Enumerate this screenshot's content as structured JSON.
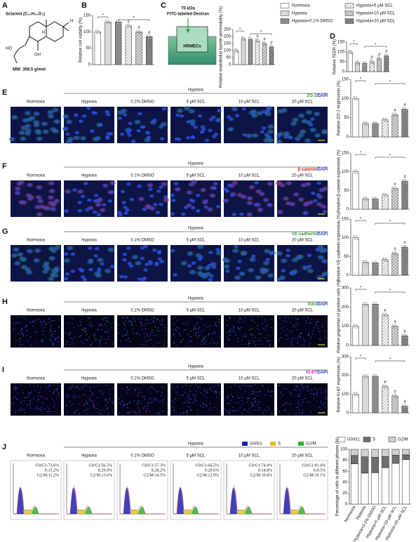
{
  "panel_letters": [
    "A",
    "B",
    "C",
    "D",
    "E",
    "F",
    "G",
    "H",
    "I",
    "J"
  ],
  "structure": {
    "title": "Sclareol (C₂₀H₃₆O₃)",
    "atoms": [
      "H",
      "H",
      "HO",
      "OH"
    ],
    "mw": "MW: 308.5 g/mol"
  },
  "assay": {
    "label1": "70 kDa",
    "label2": "FITC-labeled Dextran",
    "cells": "HRMECs"
  },
  "legend": {
    "names": [
      "Normoxia",
      "Hypoxia",
      "Hypoxia+0.1% DMSO",
      "Hypoxia+5 μM SCL",
      "Hypoxia+10 μM SCL",
      "Hypoxia+20 μM SCL"
    ],
    "colors": [
      "#ffffff",
      "#d9d9d9",
      "#8c8c8c",
      "#ffffff",
      "#d9d9d9",
      "#8c8c8c"
    ],
    "hatched": [
      false,
      false,
      false,
      true,
      true,
      true
    ]
  },
  "chart_data": [
    {
      "type": "bar",
      "ylabel": "Relative cell viability (%)",
      "ylim": [
        0,
        150
      ],
      "yticks": [
        0,
        50,
        100,
        150
      ],
      "values": [
        100,
        130,
        130,
        118,
        100,
        85
      ],
      "brackets": [
        "*",
        "*"
      ],
      "bar_labels": [
        null,
        null,
        null,
        "#",
        "#",
        "#"
      ]
    },
    {
      "type": "bar",
      "ylabel": "Relative endothelial barrier permeability (%)",
      "ylim": [
        0,
        250
      ],
      "yticks": [
        0,
        50,
        100,
        150,
        200,
        250
      ],
      "values": [
        100,
        185,
        180,
        170,
        150,
        125
      ],
      "brackets": [
        "*",
        "*"
      ],
      "bar_labels": [
        null,
        null,
        null,
        "#",
        "#",
        "#"
      ]
    },
    {
      "type": "bar",
      "ylabel": "Relative TEER (%)",
      "ylim": [
        0,
        150
      ],
      "yticks": [
        0,
        50,
        100,
        150
      ],
      "values": [
        100,
        45,
        42,
        50,
        65,
        80
      ],
      "brackets": [
        "*",
        "*"
      ],
      "bar_labels": [
        null,
        null,
        null,
        "#",
        "#",
        "#"
      ]
    },
    {
      "type": "bar",
      "ylabel": "Relative ZO-1 expression (%)",
      "ylim": [
        0,
        150
      ],
      "yticks": [
        0,
        50,
        100,
        150
      ],
      "values": [
        100,
        35,
        35,
        45,
        58,
        72
      ],
      "brackets": [
        "*",
        "*"
      ],
      "bar_labels": [
        null,
        null,
        null,
        null,
        "#",
        "#"
      ]
    },
    {
      "type": "bar",
      "ylabel": "Relative β-catenin expression (%)",
      "ylim": [
        0,
        150
      ],
      "yticks": [
        0,
        50,
        100,
        150
      ],
      "values": [
        100,
        28,
        28,
        38,
        55,
        75
      ],
      "brackets": [
        "*",
        "*"
      ],
      "bar_labels": [
        null,
        null,
        null,
        null,
        "#",
        "#"
      ]
    },
    {
      "type": "bar",
      "ylabel": "Relative VE-cadherin expression (%)",
      "ylim": [
        0,
        150
      ],
      "yticks": [
        0,
        50,
        100,
        150
      ],
      "values": [
        100,
        35,
        33,
        42,
        58,
        75
      ],
      "brackets": [
        "*",
        "*"
      ],
      "bar_labels": [
        null,
        null,
        null,
        null,
        "#",
        "#"
      ]
    },
    {
      "type": "bar",
      "ylabel": "Relative proportion of positive cells (%)",
      "ylim": [
        0,
        300
      ],
      "yticks": [
        0,
        100,
        200,
        300
      ],
      "values": [
        100,
        215,
        215,
        160,
        100,
        50
      ],
      "brackets": [
        "*",
        "*"
      ],
      "bar_labels": [
        null,
        null,
        null,
        "#",
        "#",
        "#"
      ]
    },
    {
      "type": "bar",
      "ylabel": "Relative Ki-67 expression (%)",
      "ylim": [
        0,
        300
      ],
      "yticks": [
        0,
        100,
        200,
        300
      ],
      "values": [
        100,
        195,
        195,
        140,
        90,
        35
      ],
      "brackets": [
        "*",
        "*"
      ],
      "bar_labels": [
        null,
        null,
        null,
        "#",
        "#",
        "#"
      ]
    },
    {
      "type": "stacked_bar",
      "ylabel": "Percentage of cells in different phases (%)",
      "ylim": [
        0,
        100
      ],
      "yticks": [
        0,
        20,
        40,
        60,
        80,
        100
      ],
      "categories": [
        "Normoxia",
        "Hypoxia",
        "Hypoxia+0.1% DMSO",
        "Hypoxia+5 μM SCL",
        "Hypoxia+10 μM SCL",
        "Hypoxia+20 μM SCL"
      ],
      "series": [
        {
          "name": "G0/G1",
          "color": "#ffffff",
          "values": [
            73.6,
            56.5,
            57.3,
            66.5,
            74.4,
            81.4
          ]
        },
        {
          "name": "S",
          "color": "#6e6e6e",
          "values": [
            15.2,
            29.9,
            28.2,
            20.6,
            14.8,
            8.5
          ]
        },
        {
          "name": "G2/M",
          "color": "#d0d0d0",
          "values": [
            11.2,
            13.6,
            14.5,
            12.9,
            10.8,
            10.1
          ]
        }
      ]
    }
  ],
  "image_rows": [
    {
      "group": "Hypoxia",
      "columns": [
        "Normoxia",
        "Hypoxia",
        "0.1% DMSO",
        "5 μM SCL",
        "10 μM SCL",
        "20 μM SCL"
      ],
      "stain": [
        {
          "text": "ZO-1",
          "color": "#2ca02c"
        },
        {
          "text": "/DAPI",
          "color": "#1f3fbf"
        }
      ]
    },
    {
      "group": "Hypoxia",
      "columns": [
        "Normoxia",
        "Hypoxia",
        "0.1% DMSO",
        "5 μM SCL",
        "10 μM SCL",
        "20 μM SCL"
      ],
      "stain": [
        {
          "text": "β-catenin",
          "color": "#d62020"
        },
        {
          "text": "/DAPI",
          "color": "#1f3fbf"
        }
      ]
    },
    {
      "group": "Hypoxia",
      "columns": [
        "Normoxia",
        "Hypoxia",
        "0.1% DMSO",
        "5 μM SCL",
        "10 μM SCL",
        "20 μM SCL"
      ],
      "stain": [
        {
          "text": "VE-cadherin",
          "color": "#2ca02c"
        },
        {
          "text": "/DAPI",
          "color": "#1f3fbf"
        }
      ]
    },
    {
      "group": "Hypoxia",
      "columns": [
        "Normoxia",
        "Hypoxia",
        "0.1% DMSO",
        "5 μM SCL",
        "10 μM SCL",
        "20 μM SCL"
      ],
      "stain": [
        {
          "text": "EdU",
          "color": "#2ca02c"
        },
        {
          "text": "/DAPI",
          "color": "#1f3fbf"
        }
      ]
    },
    {
      "group": "Hypoxia",
      "columns": [
        "Normoxia",
        "Hypoxia",
        "0.1% DMSO",
        "5 μM SCL",
        "10 μM SCL",
        "20 μM SCL"
      ],
      "stain": [
        {
          "text": "Ki-67",
          "color": "#c020c0"
        },
        {
          "text": "/DAPI",
          "color": "#1f3fbf"
        }
      ]
    }
  ],
  "cell_cycle": {
    "group": "Hypoxia",
    "columns": [
      "Normoxia",
      "Hypoxia",
      "0.1% DMSO",
      "5 μM SCL",
      "10 μM SCL",
      "20 μM SCL"
    ],
    "legend": [
      {
        "name": "G0/G1",
        "color": "#2020b0"
      },
      {
        "name": "S",
        "color": "#e0c020"
      },
      {
        "name": "G2/M",
        "color": "#30b030"
      }
    ],
    "panels": [
      [
        "G0/G1:73.6%",
        "S:15.2%",
        "G2/M:11.2%"
      ],
      [
        "G0/G1:56.5%",
        "S:29.9%",
        "G2/M:13.6%"
      ],
      [
        "G0/G1:57.3%",
        "S:28.2%",
        "G2/M:14.5%"
      ],
      [
        "G0/G1:66.5%",
        "S:20.6%",
        "G2/M:12.9%"
      ],
      [
        "G0/G1:74.4%",
        "S:14.8%",
        "G2/M:10.8%"
      ],
      [
        "G0/G1:81.4%",
        "S:8.5%",
        "G2/M:10.1%"
      ]
    ]
  }
}
